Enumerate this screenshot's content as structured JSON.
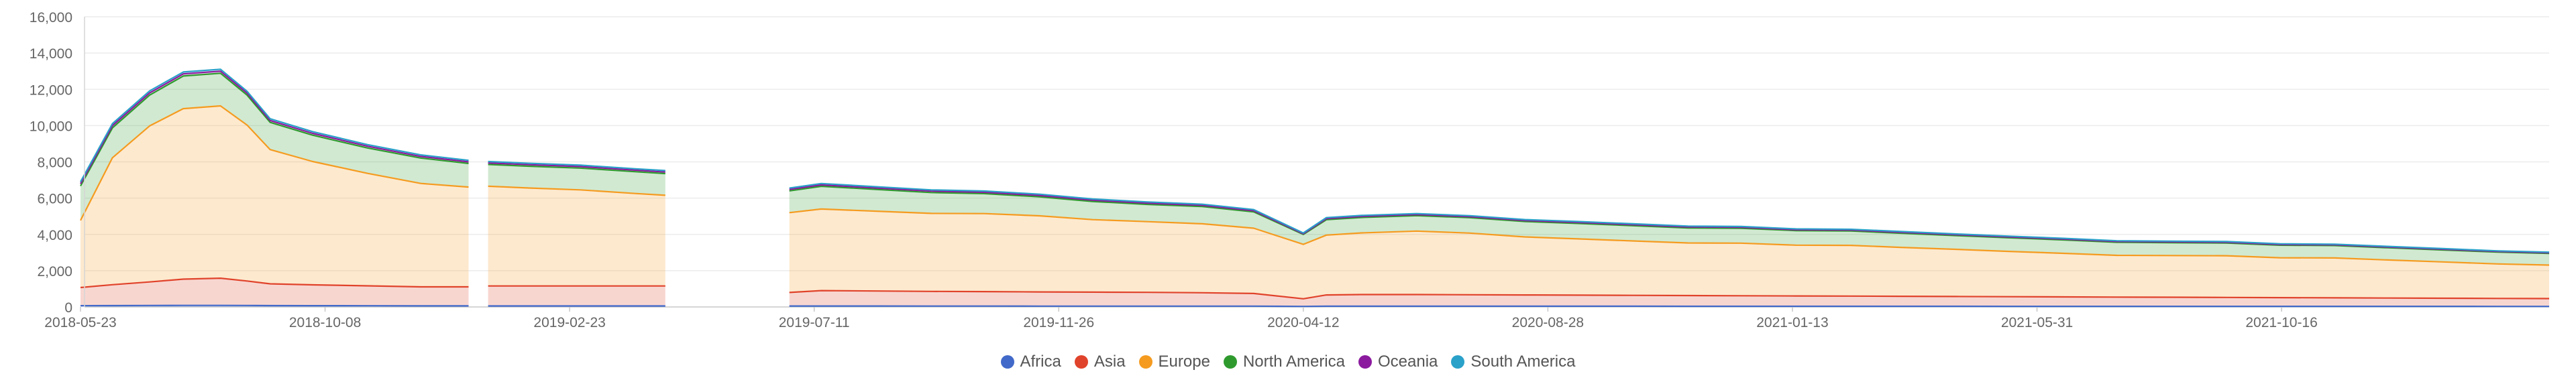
{
  "chart_data": {
    "type": "area",
    "stacked": true,
    "title": "",
    "xlabel": "",
    "ylabel": "",
    "ylim": [
      0,
      16000
    ],
    "yticks": [
      "0",
      "2,000",
      "4,000",
      "6,000",
      "8,000",
      "10,000",
      "12,000",
      "14,000",
      "16,000"
    ],
    "yticks_values": [
      0,
      2000,
      4000,
      6000,
      8000,
      10000,
      12000,
      14000,
      16000
    ],
    "xlim": [
      "2018-05-23",
      "2022-03-16"
    ],
    "xticks": [
      "2018-05-23",
      "2018-10-08",
      "2019-02-23",
      "2019-07-11",
      "2019-11-26",
      "2020-04-12",
      "2020-08-28",
      "2021-01-13",
      "2021-05-31",
      "2021-10-16"
    ],
    "grid": "horizontal",
    "legend_position": "bottom",
    "gaps": [
      [
        "2018-12-28",
        "2019-01-07"
      ],
      [
        "2019-04-18",
        "2019-06-26"
      ]
    ],
    "x": [
      "2018-05-23",
      "2018-06-10",
      "2018-07-01",
      "2018-07-20",
      "2018-08-10",
      "2018-08-25",
      "2018-09-07",
      "2018-10-01",
      "2018-11-01",
      "2018-12-01",
      "2018-12-28",
      "2019-01-08",
      "2019-02-01",
      "2019-03-01",
      "2019-04-01",
      "2019-04-18",
      "2019-06-27",
      "2019-07-15",
      "2019-08-15",
      "2019-09-15",
      "2019-10-15",
      "2019-11-15",
      "2019-12-15",
      "2020-01-15",
      "2020-02-15",
      "2020-03-15",
      "2020-04-12",
      "2020-04-25",
      "2020-05-15",
      "2020-06-15",
      "2020-07-15",
      "2020-08-15",
      "2020-09-15",
      "2020-10-15",
      "2020-11-15",
      "2020-12-15",
      "2021-01-15",
      "2021-02-15",
      "2021-03-15",
      "2021-04-15",
      "2021-05-15",
      "2021-06-15",
      "2021-07-15",
      "2021-08-15",
      "2021-09-15",
      "2021-10-15",
      "2021-11-15",
      "2021-12-15",
      "2022-01-15",
      "2022-02-15",
      "2022-03-16"
    ],
    "series": [
      {
        "name": "Africa",
        "color": "#4169c9",
        "values": [
          70,
          75,
          80,
          85,
          85,
          80,
          75,
          70,
          65,
          60,
          60,
          55,
          55,
          55,
          55,
          55,
          50,
          50,
          50,
          48,
          47,
          46,
          45,
          45,
          44,
          43,
          30,
          40,
          42,
          42,
          41,
          40,
          40,
          39,
          38,
          38,
          37,
          37,
          36,
          36,
          35,
          35,
          35,
          34,
          34,
          33,
          33,
          32,
          32,
          31,
          31
        ]
      },
      {
        "name": "Asia",
        "color": "#e0432b",
        "values": [
          1000,
          1150,
          1300,
          1450,
          1500,
          1350,
          1200,
          1150,
          1100,
          1050,
          1050,
          1100,
          1100,
          1100,
          1100,
          1100,
          750,
          850,
          830,
          810,
          800,
          780,
          770,
          760,
          740,
          700,
          420,
          620,
          640,
          640,
          630,
          620,
          610,
          600,
          590,
          580,
          570,
          560,
          550,
          540,
          530,
          520,
          510,
          500,
          490,
          480,
          470,
          460,
          450,
          440,
          430
        ]
      },
      {
        "name": "Europe",
        "color": "#f59b1f",
        "values": [
          3700,
          7000,
          8600,
          9400,
          9500,
          8600,
          7400,
          6800,
          6200,
          5700,
          5500,
          5500,
          5400,
          5300,
          5100,
          5000,
          4400,
          4500,
          4400,
          4300,
          4300,
          4200,
          4000,
          3900,
          3800,
          3600,
          3000,
          3300,
          3400,
          3500,
          3400,
          3200,
          3100,
          3000,
          2900,
          2900,
          2800,
          2800,
          2700,
          2600,
          2500,
          2400,
          2300,
          2300,
          2300,
          2200,
          2200,
          2100,
          2000,
          1900,
          1850
        ]
      },
      {
        "name": "North America",
        "color": "#2e9a2e",
        "values": [
          1900,
          1650,
          1700,
          1800,
          1800,
          1650,
          1500,
          1450,
          1400,
          1400,
          1300,
          1200,
          1200,
          1200,
          1200,
          1200,
          1200,
          1250,
          1200,
          1150,
          1100,
          1050,
          1000,
          950,
          950,
          900,
          550,
          850,
          850,
          850,
          850,
          850,
          850,
          840,
          830,
          820,
          800,
          790,
          780,
          760,
          750,
          740,
          720,
          710,
          700,
          690,
          680,
          670,
          660,
          650,
          640
        ]
      },
      {
        "name": "Oceania",
        "color": "#8b1a9e",
        "values": [
          120,
          120,
          120,
          115,
          115,
          110,
          105,
          100,
          95,
          90,
          90,
          85,
          85,
          85,
          85,
          85,
          80,
          80,
          78,
          76,
          75,
          74,
          72,
          70,
          68,
          65,
          40,
          60,
          60,
          60,
          58,
          56,
          55,
          54,
          53,
          52,
          51,
          50,
          49,
          48,
          47,
          46,
          45,
          44,
          43,
          42,
          41,
          40,
          39,
          38,
          37
        ]
      },
      {
        "name": "South America",
        "color": "#2aa1c9",
        "values": [
          110,
          110,
          110,
          105,
          105,
          100,
          95,
          95,
          90,
          85,
          85,
          80,
          80,
          80,
          80,
          80,
          75,
          75,
          72,
          70,
          70,
          68,
          66,
          65,
          64,
          62,
          40,
          55,
          55,
          55,
          54,
          53,
          52,
          51,
          50,
          49,
          48,
          47,
          46,
          45,
          44,
          43,
          42,
          41,
          40,
          39,
          38,
          37,
          36,
          35,
          34
        ]
      }
    ]
  }
}
